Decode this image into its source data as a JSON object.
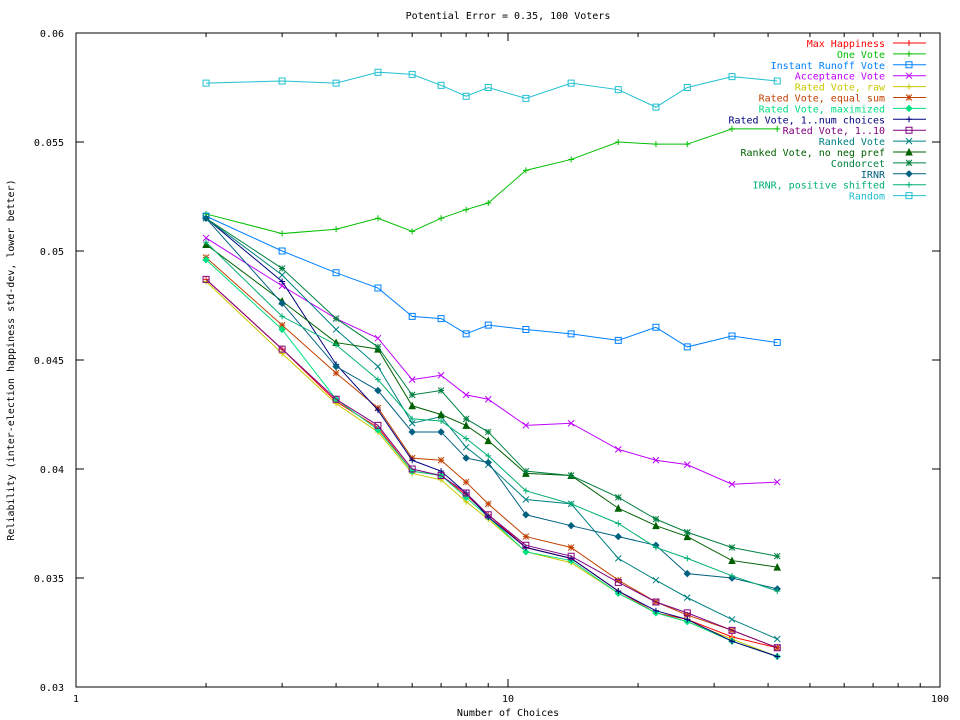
{
  "chart_data": {
    "type": "line",
    "title": "Potential Error = 0.35, 100 Voters",
    "xlabel": "Number of Choices",
    "ylabel": "Reliability (inter-election happiness std-dev, lower better)",
    "xscale": "log",
    "xlim": [
      1,
      100
    ],
    "ylim": [
      0.03,
      0.06
    ],
    "xticks": [
      1,
      10,
      100
    ],
    "xtick_labels": [
      "1",
      "10",
      "100"
    ],
    "yticks": [
      0.03,
      0.035,
      0.04,
      0.045,
      0.05,
      0.055,
      0.06
    ],
    "ytick_labels": [
      "0.03",
      "0.035",
      "0.04",
      "0.045",
      "0.05",
      "0.055",
      "0.06"
    ],
    "grid": false,
    "legend_position": "top-right",
    "x": [
      2,
      3,
      4,
      5,
      6,
      7,
      8,
      9,
      11,
      14,
      18,
      22,
      26,
      33,
      42
    ],
    "series": [
      {
        "name": "Max Happiness",
        "color": "#ff0000",
        "marker": "plus",
        "values": [
          0.0487,
          0.0455,
          0.0431,
          0.0419,
          0.0399,
          0.0397,
          0.0388,
          0.0379,
          0.0364,
          0.0359,
          0.0344,
          0.0334,
          0.0331,
          0.0323,
          0.0318
        ]
      },
      {
        "name": "One Vote",
        "color": "#00c000",
        "marker": "plus",
        "values": [
          0.0517,
          0.0508,
          0.051,
          0.0515,
          0.0509,
          0.0515,
          0.0519,
          0.0522,
          0.0537,
          0.0542,
          0.055,
          0.0549,
          0.0549,
          0.0556,
          0.0556
        ]
      },
      {
        "name": "Instant Runoff Vote",
        "color": "#0080ff",
        "marker": "square",
        "values": [
          0.0516,
          0.05,
          0.049,
          0.0483,
          0.047,
          0.0469,
          0.0462,
          0.0466,
          0.0464,
          0.0462,
          0.0459,
          0.0465,
          0.0456,
          0.0461,
          0.0458
        ]
      },
      {
        "name": "Acceptance Vote",
        "color": "#c000ff",
        "marker": "x",
        "values": [
          0.0506,
          0.0484,
          0.0469,
          0.046,
          0.0441,
          0.0443,
          0.0434,
          0.0432,
          0.042,
          0.0421,
          0.0409,
          0.0404,
          0.0402,
          0.0393,
          0.0394
        ]
      },
      {
        "name": "Rated Vote, raw",
        "color": "#c8c800",
        "marker": "plus",
        "values": [
          0.0486,
          0.0453,
          0.043,
          0.0417,
          0.0398,
          0.0395,
          0.0385,
          0.0377,
          0.0362,
          0.0357,
          0.0343,
          0.0334,
          0.033,
          0.0322,
          0.0314
        ]
      },
      {
        "name": "Rated Vote, equal sum",
        "color": "#c04000",
        "marker": "star",
        "values": [
          0.0497,
          0.0466,
          0.0444,
          0.0428,
          0.0405,
          0.0404,
          0.0394,
          0.0384,
          0.0369,
          0.0364,
          0.0349,
          0.0339,
          0.0333,
          0.0326,
          0.0318
        ]
      },
      {
        "name": "Rated Vote, maximized",
        "color": "#00e080",
        "marker": "diamond",
        "values": [
          0.0496,
          0.0464,
          0.0432,
          0.0418,
          0.0399,
          0.0397,
          0.0387,
          0.0378,
          0.0362,
          0.0358,
          0.0343,
          0.0334,
          0.033,
          0.0321,
          0.0314
        ]
      },
      {
        "name": "Rated Vote, 1..num choices",
        "color": "#000080",
        "marker": "plus",
        "values": [
          0.0515,
          0.0486,
          0.0448,
          0.0427,
          0.0404,
          0.0399,
          0.0389,
          0.0378,
          0.0364,
          0.0359,
          0.0344,
          0.0335,
          0.0331,
          0.0321,
          0.0314
        ]
      },
      {
        "name": "Rated Vote, 1..10",
        "color": "#800080",
        "marker": "square",
        "values": [
          0.0487,
          0.0455,
          0.0432,
          0.042,
          0.04,
          0.0397,
          0.0389,
          0.0379,
          0.0365,
          0.036,
          0.0348,
          0.0339,
          0.0334,
          0.0326,
          0.0318
        ]
      },
      {
        "name": "Ranked Vote",
        "color": "#008080",
        "marker": "x",
        "values": [
          0.0515,
          0.0489,
          0.0464,
          0.0447,
          0.0421,
          0.0424,
          0.041,
          0.0402,
          0.0386,
          0.0384,
          0.0359,
          0.0349,
          0.0341,
          0.0331,
          0.0322
        ]
      },
      {
        "name": "Ranked Vote, no neg pref",
        "color": "#006000",
        "marker": "triangle",
        "values": [
          0.0503,
          0.0477,
          0.0458,
          0.0455,
          0.0429,
          0.0425,
          0.042,
          0.0413,
          0.0398,
          0.0397,
          0.0382,
          0.0374,
          0.0369,
          0.0358,
          0.0355
        ]
      },
      {
        "name": "Condorcet",
        "color": "#008040",
        "marker": "star",
        "values": [
          0.0515,
          0.0492,
          0.0469,
          0.0456,
          0.0434,
          0.0436,
          0.0423,
          0.0417,
          0.0399,
          0.0397,
          0.0387,
          0.0377,
          0.0371,
          0.0364,
          0.036
        ]
      },
      {
        "name": "IRNR",
        "color": "#006080",
        "marker": "diamond",
        "values": [
          0.0515,
          0.0476,
          0.0447,
          0.0436,
          0.0417,
          0.0417,
          0.0405,
          0.0403,
          0.0379,
          0.0374,
          0.0369,
          0.0365,
          0.0352,
          0.035,
          0.0345
        ]
      },
      {
        "name": "IRNR, positive shifted",
        "color": "#00b070",
        "marker": "plus",
        "values": [
          0.0504,
          0.047,
          0.0457,
          0.0441,
          0.0423,
          0.0422,
          0.0414,
          0.0406,
          0.039,
          0.0384,
          0.0375,
          0.0364,
          0.0359,
          0.0351,
          0.0344
        ]
      },
      {
        "name": "Random",
        "color": "#20c0d0",
        "marker": "square",
        "values": [
          0.0577,
          0.0578,
          0.0577,
          0.0582,
          0.0581,
          0.0576,
          0.0571,
          0.0575,
          0.057,
          0.0577,
          0.0574,
          0.0566,
          0.0575,
          0.058,
          0.0578
        ]
      }
    ]
  }
}
